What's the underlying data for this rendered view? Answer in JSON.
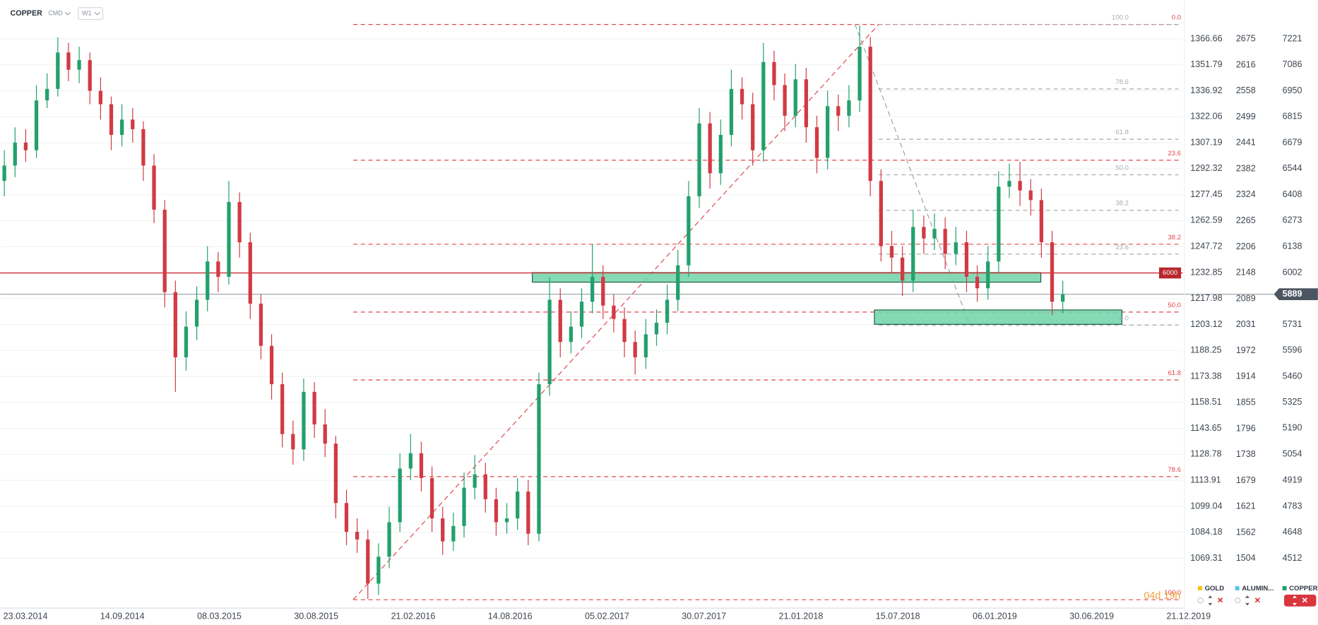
{
  "header": {
    "symbol": "COPPER",
    "market": "CMD",
    "interval": "W1"
  },
  "chart_data": {
    "type": "candlestick",
    "x_labels": [
      "23.03.2014",
      "14.09.2014",
      "08.03.2015",
      "30.08.2015",
      "21.02.2016",
      "14.08.2016",
      "05.02.2017",
      "30.07.2017",
      "21.01.2018",
      "15.07.2018",
      "06.01.2019",
      "30.06.2019",
      "21.12.2019"
    ],
    "ohlc": [
      [
        6480,
        6640,
        6400,
        6560
      ],
      [
        6560,
        6760,
        6500,
        6680
      ],
      [
        6680,
        6750,
        6580,
        6640
      ],
      [
        6640,
        6980,
        6600,
        6900
      ],
      [
        6900,
        7040,
        6860,
        6960
      ],
      [
        6960,
        7230,
        6920,
        7150
      ],
      [
        7150,
        7200,
        7000,
        7060
      ],
      [
        7060,
        7180,
        6990,
        7110
      ],
      [
        7110,
        7150,
        6880,
        6950
      ],
      [
        6950,
        7020,
        6800,
        6880
      ],
      [
        6880,
        6920,
        6640,
        6720
      ],
      [
        6720,
        6880,
        6660,
        6800
      ],
      [
        6800,
        6860,
        6680,
        6750
      ],
      [
        6750,
        6790,
        6480,
        6560
      ],
      [
        6560,
        6620,
        6260,
        6330
      ],
      [
        6330,
        6380,
        5820,
        5900
      ],
      [
        5900,
        5960,
        5380,
        5560
      ],
      [
        5560,
        5800,
        5490,
        5720
      ],
      [
        5720,
        5930,
        5650,
        5860
      ],
      [
        5860,
        6140,
        5800,
        6060
      ],
      [
        6060,
        6110,
        5900,
        5980
      ],
      [
        5980,
        6480,
        5940,
        6370
      ],
      [
        6370,
        6420,
        6080,
        6160
      ],
      [
        6160,
        6210,
        5760,
        5840
      ],
      [
        5840,
        5890,
        5550,
        5620
      ],
      [
        5620,
        5680,
        5340,
        5420
      ],
      [
        5420,
        5480,
        5090,
        5160
      ],
      [
        5160,
        5230,
        5000,
        5080
      ],
      [
        5080,
        5450,
        5020,
        5380
      ],
      [
        5380,
        5430,
        5140,
        5210
      ],
      [
        5210,
        5290,
        5040,
        5110
      ],
      [
        5110,
        5150,
        4720,
        4800
      ],
      [
        4800,
        4870,
        4580,
        4650
      ],
      [
        4650,
        4720,
        4540,
        4610
      ],
      [
        4610,
        4660,
        4300,
        4380
      ],
      [
        4380,
        4590,
        4320,
        4520
      ],
      [
        4520,
        4780,
        4460,
        4700
      ],
      [
        4700,
        5060,
        4650,
        4980
      ],
      [
        4980,
        5160,
        4920,
        5060
      ],
      [
        5060,
        5120,
        4860,
        4930
      ],
      [
        4930,
        4990,
        4650,
        4720
      ],
      [
        4720,
        4780,
        4530,
        4600
      ],
      [
        4600,
        4750,
        4550,
        4680
      ],
      [
        4680,
        4960,
        4620,
        4880
      ],
      [
        4880,
        5050,
        4820,
        4950
      ],
      [
        4950,
        5010,
        4750,
        4820
      ],
      [
        4820,
        4880,
        4630,
        4700
      ],
      [
        4700,
        4800,
        4640,
        4720
      ],
      [
        4720,
        4930,
        4660,
        4860
      ],
      [
        4860,
        4920,
        4580,
        4640
      ],
      [
        4640,
        5480,
        4600,
        5420
      ],
      [
        5420,
        5980,
        5360,
        5860
      ],
      [
        5860,
        5920,
        5560,
        5640
      ],
      [
        5640,
        5800,
        5580,
        5720
      ],
      [
        5720,
        5920,
        5660,
        5850
      ],
      [
        5850,
        6150,
        5790,
        5980
      ],
      [
        5980,
        6040,
        5760,
        5830
      ],
      [
        5830,
        5890,
        5690,
        5760
      ],
      [
        5760,
        5820,
        5560,
        5640
      ],
      [
        5640,
        5700,
        5470,
        5560
      ],
      [
        5560,
        5760,
        5500,
        5680
      ],
      [
        5680,
        5810,
        5620,
        5740
      ],
      [
        5740,
        5940,
        5680,
        5860
      ],
      [
        5860,
        6120,
        5800,
        6040
      ],
      [
        6040,
        6480,
        5980,
        6400
      ],
      [
        6400,
        6860,
        6340,
        6780
      ],
      [
        6780,
        6840,
        6440,
        6520
      ],
      [
        6520,
        6800,
        6460,
        6720
      ],
      [
        6720,
        7060,
        6660,
        6960
      ],
      [
        6960,
        7020,
        6800,
        6880
      ],
      [
        6880,
        6940,
        6560,
        6640
      ],
      [
        6640,
        7200,
        6580,
        7100
      ],
      [
        7100,
        7160,
        6900,
        6980
      ],
      [
        6980,
        7040,
        6740,
        6820
      ],
      [
        6820,
        7090,
        6760,
        7010
      ],
      [
        7010,
        7070,
        6680,
        6760
      ],
      [
        6760,
        6820,
        6520,
        6600
      ],
      [
        6600,
        6950,
        6540,
        6870
      ],
      [
        6870,
        6930,
        6740,
        6820
      ],
      [
        6820,
        6980,
        6760,
        6900
      ],
      [
        6900,
        7290,
        6840,
        7180
      ],
      [
        7180,
        7230,
        6400,
        6480
      ],
      [
        6480,
        6540,
        6060,
        6140
      ],
      [
        6140,
        6220,
        6000,
        6080
      ],
      [
        6080,
        6140,
        5880,
        5960
      ],
      [
        5960,
        6330,
        5900,
        6240
      ],
      [
        6240,
        6300,
        6100,
        6180
      ],
      [
        6180,
        6310,
        6120,
        6230
      ],
      [
        6230,
        6290,
        6020,
        6100
      ],
      [
        6100,
        6240,
        6040,
        6160
      ],
      [
        6160,
        6220,
        5900,
        5980
      ],
      [
        5980,
        6040,
        5850,
        5920
      ],
      [
        5920,
        6140,
        5860,
        6060
      ],
      [
        6060,
        6530,
        6000,
        6450
      ],
      [
        6450,
        6570,
        6390,
        6480
      ],
      [
        6480,
        6580,
        6350,
        6430
      ],
      [
        6430,
        6490,
        6300,
        6380
      ],
      [
        6380,
        6440,
        6080,
        6160
      ],
      [
        6160,
        6220,
        5780,
        5850
      ],
      [
        5850,
        5960,
        5790,
        5889
      ]
    ],
    "up_color": "#23a06c",
    "down_color": "#d23a44",
    "ylim": [
      4252.1,
      7423.6
    ],
    "yticks": [
      7221,
      7086,
      6950,
      6815,
      6679,
      6544,
      6408,
      6273,
      6138,
      6002,
      5731,
      5596,
      5460,
      5325,
      5190,
      5054,
      4919,
      4783,
      4648,
      4512
    ],
    "gold_axis": {
      "lim": [
        1040.78,
        1388.9
      ],
      "ticks": [
        1366.66,
        1351.79,
        1336.92,
        1322.06,
        1307.19,
        1292.32,
        1277.45,
        1262.59,
        1247.72,
        1232.85,
        1217.98,
        1203.12,
        1188.25,
        1173.38,
        1158.51,
        1143.65,
        1128.78,
        1113.91,
        1099.04,
        1084.18,
        1069.31
      ]
    },
    "aluminium_axis": {
      "lim": [
        1391.7,
        2762.6
      ],
      "ticks": [
        2675,
        2616,
        2558,
        2499,
        2441,
        2382,
        2324,
        2265,
        2206,
        2148,
        2089,
        2031,
        1972,
        1914,
        1855,
        1796,
        1738,
        1679,
        1621,
        1562,
        1504
      ]
    },
    "grid": true,
    "fib_levels": [
      {
        "level": "0.0",
        "price": 7296
      },
      {
        "level": "23.6",
        "price": 6588
      },
      {
        "level": "38.2",
        "price": 6150
      },
      {
        "level": "50.0",
        "price": 5796
      },
      {
        "level": "61.8",
        "price": 5442
      },
      {
        "level": "78.6",
        "price": 4938
      },
      {
        "level": "100.0",
        "price": 4296
      }
    ],
    "fib_levels_2": [
      {
        "level": "100.0",
        "price": 7296
      },
      {
        "level": "78.6",
        "price": 6960
      },
      {
        "level": "61.8",
        "price": 6697
      },
      {
        "level": "50.0",
        "price": 6512
      },
      {
        "level": "38.2",
        "price": 6327
      },
      {
        "level": "23.6",
        "price": 6098
      },
      {
        "level": "0.0",
        "price": 5728
      }
    ],
    "hline": 6000,
    "last_price": 5889,
    "zones": [
      {
        "top": 6002,
        "bottom": 5952
      },
      {
        "top": 5807,
        "bottom": 5732
      }
    ],
    "legend": [
      {
        "name": "GOLD",
        "color": "#f2c21b"
      },
      {
        "name": "ALUMIN...",
        "color": "#5cc3ea"
      },
      {
        "name": "COPPER",
        "color": "#23a06c"
      }
    ],
    "countdown": "04d 19h"
  }
}
